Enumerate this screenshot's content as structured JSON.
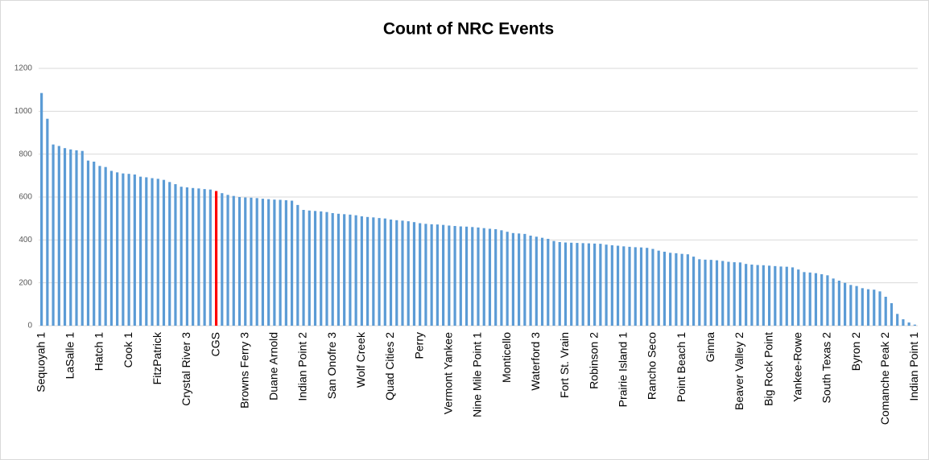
{
  "chart_data": {
    "type": "bar",
    "title": "Count of NRC Events",
    "categories": [
      "Sequoyah 1",
      null,
      null,
      null,
      null,
      "LaSalle 1",
      null,
      null,
      null,
      null,
      "Hatch 1",
      null,
      null,
      null,
      null,
      "Cook 1",
      null,
      null,
      null,
      null,
      "FitzPatrick",
      null,
      null,
      null,
      null,
      "Crystal River 3",
      null,
      null,
      null,
      null,
      "CGS",
      null,
      null,
      null,
      null,
      "Browns Ferry 3",
      null,
      null,
      null,
      null,
      "Duane Arnold",
      null,
      null,
      null,
      null,
      "Indian Point 2",
      null,
      null,
      null,
      null,
      "San Onofre 3",
      null,
      null,
      null,
      null,
      "Wolf Creek",
      null,
      null,
      null,
      null,
      "Quad Cities 2",
      null,
      null,
      null,
      null,
      "Perry",
      null,
      null,
      null,
      null,
      "Vermont Yankee",
      null,
      null,
      null,
      null,
      "Nine Mile Point 1",
      null,
      null,
      null,
      null,
      "Monticello",
      null,
      null,
      null,
      null,
      "Waterford 3",
      null,
      null,
      null,
      null,
      "Fort St. Vrain",
      null,
      null,
      null,
      null,
      "Robinson 2",
      null,
      null,
      null,
      null,
      "Prairie Island 1",
      null,
      null,
      null,
      null,
      "Rancho Seco",
      null,
      null,
      null,
      null,
      "Point Beach 1",
      null,
      null,
      null,
      null,
      "Ginna",
      null,
      null,
      null,
      null,
      "Beaver Valley 2",
      null,
      null,
      null,
      null,
      "Big Rock Point",
      null,
      null,
      null,
      null,
      "Yankee-Rowe",
      null,
      null,
      null,
      null,
      "South Texas 2",
      null,
      null,
      null,
      null,
      "Byron 2",
      null,
      null,
      null,
      null,
      "Comanche Peak 2",
      null,
      null,
      null,
      null,
      "Indian Point 1"
    ],
    "values": [
      1085,
      965,
      845,
      838,
      828,
      822,
      818,
      815,
      770,
      765,
      745,
      740,
      722,
      715,
      710,
      708,
      705,
      695,
      692,
      688,
      685,
      680,
      670,
      660,
      648,
      645,
      642,
      640,
      637,
      635,
      628,
      618,
      610,
      605,
      600,
      598,
      597,
      595,
      592,
      590,
      588,
      587,
      585,
      583,
      563,
      540,
      537,
      535,
      533,
      530,
      525,
      522,
      520,
      518,
      515,
      510,
      507,
      505,
      502,
      500,
      495,
      492,
      490,
      487,
      483,
      478,
      475,
      473,
      472,
      470,
      467,
      465,
      463,
      462,
      460,
      458,
      455,
      452,
      450,
      445,
      438,
      432,
      430,
      428,
      420,
      415,
      410,
      405,
      395,
      390,
      388,
      387,
      386,
      385,
      384,
      383,
      382,
      378,
      375,
      373,
      370,
      368,
      366,
      365,
      363,
      358,
      350,
      345,
      340,
      338,
      335,
      333,
      322,
      310,
      308,
      307,
      305,
      302,
      298,
      296,
      295,
      288,
      285,
      283,
      282,
      280,
      278,
      276,
      275,
      272,
      262,
      250,
      248,
      245,
      240,
      235,
      220,
      210,
      200,
      190,
      185,
      175,
      170,
      168,
      160,
      135,
      105,
      55,
      30,
      15,
      5
    ],
    "color": "#5b9bd5",
    "highlight_category": "CGS",
    "highlight_color": "#ff0000",
    "ylim": [
      0,
      1200
    ],
    "yticks": [
      0,
      200,
      400,
      600,
      800,
      1000,
      1200
    ],
    "grid": true
  }
}
